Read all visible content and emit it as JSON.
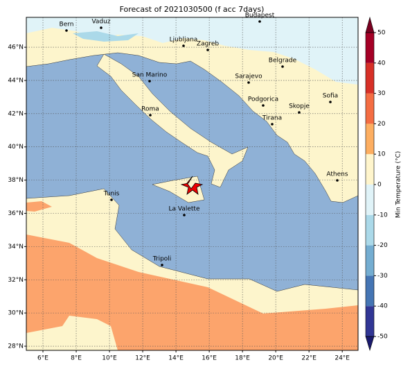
{
  "title": "Forecast of 2021030500 (f acc 7days)",
  "map": {
    "xlim": [
      5,
      24.95
    ],
    "ylim": [
      27.75,
      47.8
    ],
    "grid": true,
    "xticks": [
      {
        "value": 6,
        "label": "6°E"
      },
      {
        "value": 8,
        "label": "8°E"
      },
      {
        "value": 10,
        "label": "10°E"
      },
      {
        "value": 12,
        "label": "12°E"
      },
      {
        "value": 14,
        "label": "14°E"
      },
      {
        "value": 16,
        "label": "16°E"
      },
      {
        "value": 18,
        "label": "18°E"
      },
      {
        "value": 20,
        "label": "20°E"
      },
      {
        "value": 22,
        "label": "22°E"
      },
      {
        "value": 24,
        "label": "24°E"
      }
    ],
    "yticks": [
      {
        "value": 28,
        "label": "28°N"
      },
      {
        "value": 30,
        "label": "30°N"
      },
      {
        "value": 32,
        "label": "32°N"
      },
      {
        "value": 34,
        "label": "34°N"
      },
      {
        "value": 36,
        "label": "36°N"
      },
      {
        "value": 38,
        "label": "38°N"
      },
      {
        "value": 40,
        "label": "40°N"
      },
      {
        "value": 42,
        "label": "42°N"
      },
      {
        "value": 44,
        "label": "44°N"
      },
      {
        "value": 46,
        "label": "46°N"
      }
    ]
  },
  "cities": [
    "Bern",
    "Vaduz",
    "Budapest",
    "Ljubljana",
    "Zagreb",
    "Belgrade",
    "San Marino",
    "Sarajevo",
    "Sofia",
    "Roma",
    "Podgorica",
    "Skopje",
    "Tirana",
    "Athens",
    "Tunis",
    "La Valette",
    "Tripoli"
  ],
  "colorbar": {
    "label": "Min Temperature (°C)",
    "lim": [
      -50,
      50
    ],
    "ticks": [
      -50,
      -40,
      -30,
      -20,
      -10,
      0,
      10,
      20,
      30,
      40,
      50
    ],
    "colors": [
      "#313695",
      "#4575b4",
      "#74add1",
      "#abd9e9",
      "#e0f3f8",
      "#fff5cc",
      "#fdae61",
      "#f46d43",
      "#d73027",
      "#a50026"
    ],
    "under": "#1a1a6e",
    "over": "#7a0020"
  }
}
